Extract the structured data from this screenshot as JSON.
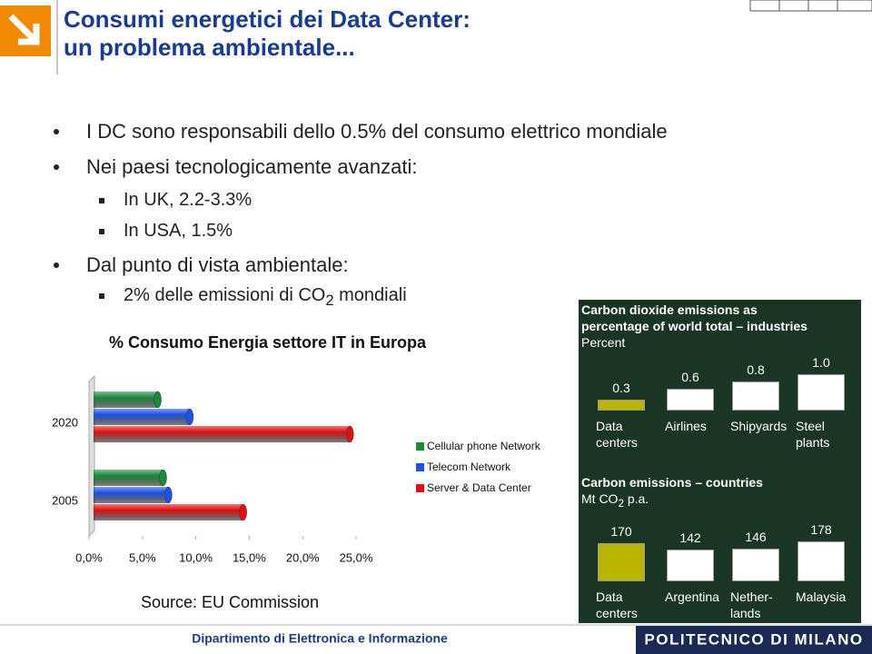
{
  "header": {
    "title": "Consumi energetici dei Data Center:\nun problema ambientale..."
  },
  "bullets": [
    {
      "text": "I DC sono responsabili dello 0.5% del consumo elettrico mondiale"
    },
    {
      "text": "Nei paesi tecnologicamente avanzati:",
      "items": [
        {
          "text": "In UK, 2.2-3.3%"
        },
        {
          "text": "In USA, 1.5%"
        }
      ]
    },
    {
      "text": "Dal punto di vista ambientale:",
      "items": [
        {
          "parts": [
            "2% delle emissioni di CO",
            "2",
            " mondiali"
          ]
        }
      ]
    }
  ],
  "chart_data": [
    {
      "type": "bar",
      "orientation": "horizontal",
      "title": "% Consumo Energia settore IT in Europa",
      "categories": [
        "2020",
        "2005"
      ],
      "series": [
        {
          "name": "Cellular phone Network",
          "color": "#1a8a3a",
          "values": [
            6,
            6.5
          ]
        },
        {
          "name": "Telecom Network",
          "color": "#1e50e6",
          "values": [
            9,
            7
          ]
        },
        {
          "name": "Server & Data Center",
          "color": "#e01010",
          "values": [
            24,
            14
          ]
        }
      ],
      "xlim": [
        0,
        25
      ],
      "xticks": [
        {
          "value": 0,
          "label": "0,0%"
        },
        {
          "value": 5,
          "label": "5,0%"
        },
        {
          "value": 10,
          "label": "10,0%"
        },
        {
          "value": 15,
          "label": "15,0%"
        },
        {
          "value": 20,
          "label": "20,0%"
        },
        {
          "value": 25,
          "label": "25,0%"
        }
      ],
      "legend": "right",
      "source": "Source: EU Commission"
    },
    {
      "type": "bar",
      "orientation": "vertical",
      "title": "Carbon dioxide emissions as\npercentage of world total – industries",
      "subtitle_parts": [
        "Percent"
      ],
      "categories": [
        "Data\ncenters",
        "Airlines",
        "Shipyards",
        "Steel\nplants"
      ],
      "values": [
        0.3,
        0.6,
        0.8,
        1.0
      ],
      "value_labels": [
        "0.3",
        "0.6",
        "0.8",
        "1.0"
      ],
      "colors": [
        "#b8b400",
        "#ffffff",
        "#ffffff",
        "#ffffff"
      ]
    },
    {
      "type": "bar",
      "orientation": "vertical",
      "title": "Carbon emissions – countries",
      "subtitle_parts": [
        "Mt CO",
        "2",
        " p.a."
      ],
      "categories": [
        "Data\ncenters",
        "Argentina",
        "Nether-\nlands",
        "Malaysia"
      ],
      "values": [
        170,
        142,
        146,
        178
      ],
      "colors": [
        "#b8b400",
        "#ffffff",
        "#ffffff",
        "#ffffff"
      ]
    }
  ],
  "footer": {
    "department": "Dipartimento di Elettronica e Informazione",
    "logo": "POLITECNICO DI MILANO"
  }
}
